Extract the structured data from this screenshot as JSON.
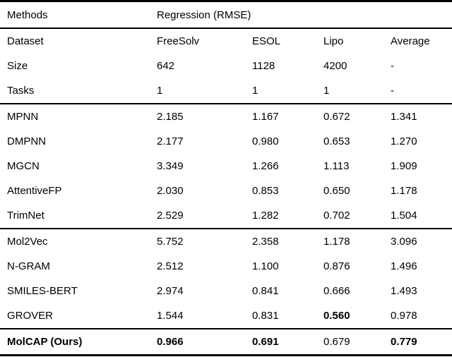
{
  "page": {
    "background_color": "#ffffff",
    "text_color": "#000000",
    "rule_color": "#000000"
  },
  "table": {
    "header": {
      "methods_label": "Methods",
      "group_label": "Regression (RMSE)"
    },
    "meta_rows": [
      {
        "label": "Dataset",
        "values": [
          "FreeSolv",
          "ESOL",
          "Lipo",
          "Average"
        ],
        "bold": [
          false,
          false,
          false,
          false
        ],
        "bold_label": false
      },
      {
        "label": "Size",
        "values": [
          "642",
          "1128",
          "4200",
          "-"
        ],
        "bold": [
          false,
          false,
          false,
          false
        ],
        "bold_label": false
      },
      {
        "label": "Tasks",
        "values": [
          "1",
          "1",
          "1",
          "-"
        ],
        "bold": [
          false,
          false,
          false,
          false
        ],
        "bold_label": false
      }
    ],
    "sections": [
      {
        "name": "graph-baselines",
        "rows": [
          {
            "label": "MPNN",
            "values": [
              "2.185",
              "1.167",
              "0.672",
              "1.341"
            ],
            "bold": [
              false,
              false,
              false,
              false
            ],
            "bold_label": false
          },
          {
            "label": "DMPNN",
            "values": [
              "2.177",
              "0.980",
              "0.653",
              "1.270"
            ],
            "bold": [
              false,
              false,
              false,
              false
            ],
            "bold_label": false
          },
          {
            "label": "MGCN",
            "values": [
              "3.349",
              "1.266",
              "1.113",
              "1.909"
            ],
            "bold": [
              false,
              false,
              false,
              false
            ],
            "bold_label": false
          },
          {
            "label": "AttentiveFP",
            "values": [
              "2.030",
              "0.853",
              "0.650",
              "1.178"
            ],
            "bold": [
              false,
              false,
              false,
              false
            ],
            "bold_label": false
          },
          {
            "label": "TrimNet",
            "values": [
              "2.529",
              "1.282",
              "0.702",
              "1.504"
            ],
            "bold": [
              false,
              false,
              false,
              false
            ],
            "bold_label": false
          }
        ]
      },
      {
        "name": "pretrain-baselines",
        "rows": [
          {
            "label": "Mol2Vec",
            "values": [
              "5.752",
              "2.358",
              "1.178",
              "3.096"
            ],
            "bold": [
              false,
              false,
              false,
              false
            ],
            "bold_label": false
          },
          {
            "label": "N-GRAM",
            "values": [
              "2.512",
              "1.100",
              "0.876",
              "1.496"
            ],
            "bold": [
              false,
              false,
              false,
              false
            ],
            "bold_label": false
          },
          {
            "label": "SMILES-BERT",
            "values": [
              "2.974",
              "0.841",
              "0.666",
              "1.493"
            ],
            "bold": [
              false,
              false,
              false,
              false
            ],
            "bold_label": false
          },
          {
            "label": "GROVER",
            "values": [
              "1.544",
              "0.831",
              "0.560",
              "0.978"
            ],
            "bold": [
              false,
              false,
              true,
              false
            ],
            "bold_label": false
          }
        ]
      },
      {
        "name": "ours",
        "rows": [
          {
            "label": "MolCAP (Ours)",
            "values": [
              "0.966",
              "0.691",
              "0.679",
              "0.779"
            ],
            "bold": [
              true,
              true,
              false,
              true
            ],
            "bold_label": true
          }
        ]
      }
    ]
  }
}
